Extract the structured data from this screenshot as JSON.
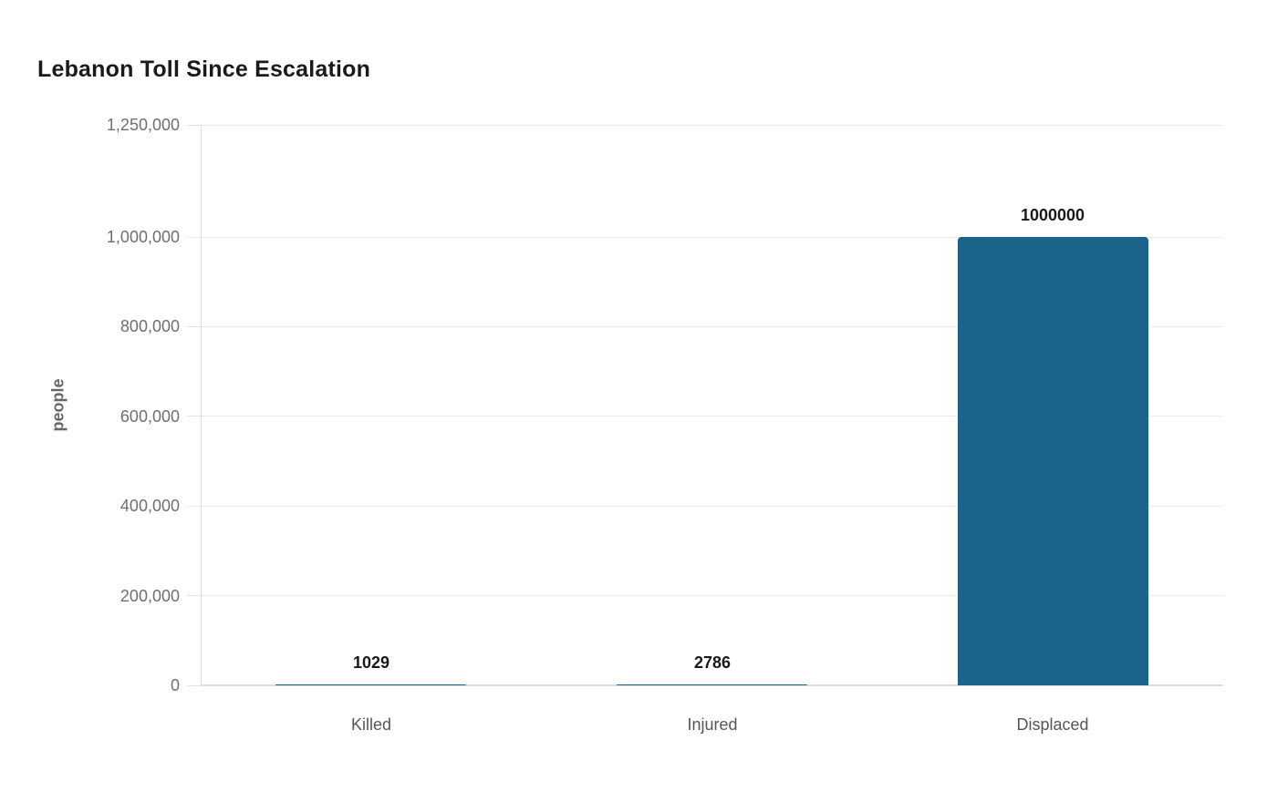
{
  "chart": {
    "title": "Lebanon Toll Since Escalation",
    "y_axis_title": "people"
  },
  "colors": {
    "background": "#ffffff",
    "bar": "#1a6389",
    "gridline": "#ebebeb",
    "axis_line": "#dedede",
    "tick_mark": "#e3e3e3",
    "tick_label": "#6f6f6f",
    "value_label": "#1a1a1a",
    "category_label": "#565656",
    "title": "#1a1a1a"
  },
  "chart_data": {
    "type": "bar",
    "title": "Lebanon Toll Since Escalation",
    "xlabel": "",
    "ylabel": "people",
    "categories": [
      "Killed",
      "Injured",
      "Displaced"
    ],
    "values": [
      1029,
      2786,
      1000000
    ],
    "value_labels": [
      "1029",
      "2786",
      "1000000"
    ],
    "ylim": [
      0,
      1250000
    ],
    "yticks": [
      {
        "value": 0,
        "label": "0"
      },
      {
        "value": 200000,
        "label": "200,000"
      },
      {
        "value": 400000,
        "label": "400,000"
      },
      {
        "value": 600000,
        "label": "600,000"
      },
      {
        "value": 800000,
        "label": "800,000"
      },
      {
        "value": 1000000,
        "label": "1,000,000"
      },
      {
        "value": 1250000,
        "label": "1,250,000"
      }
    ],
    "grid": true,
    "legend": false
  }
}
